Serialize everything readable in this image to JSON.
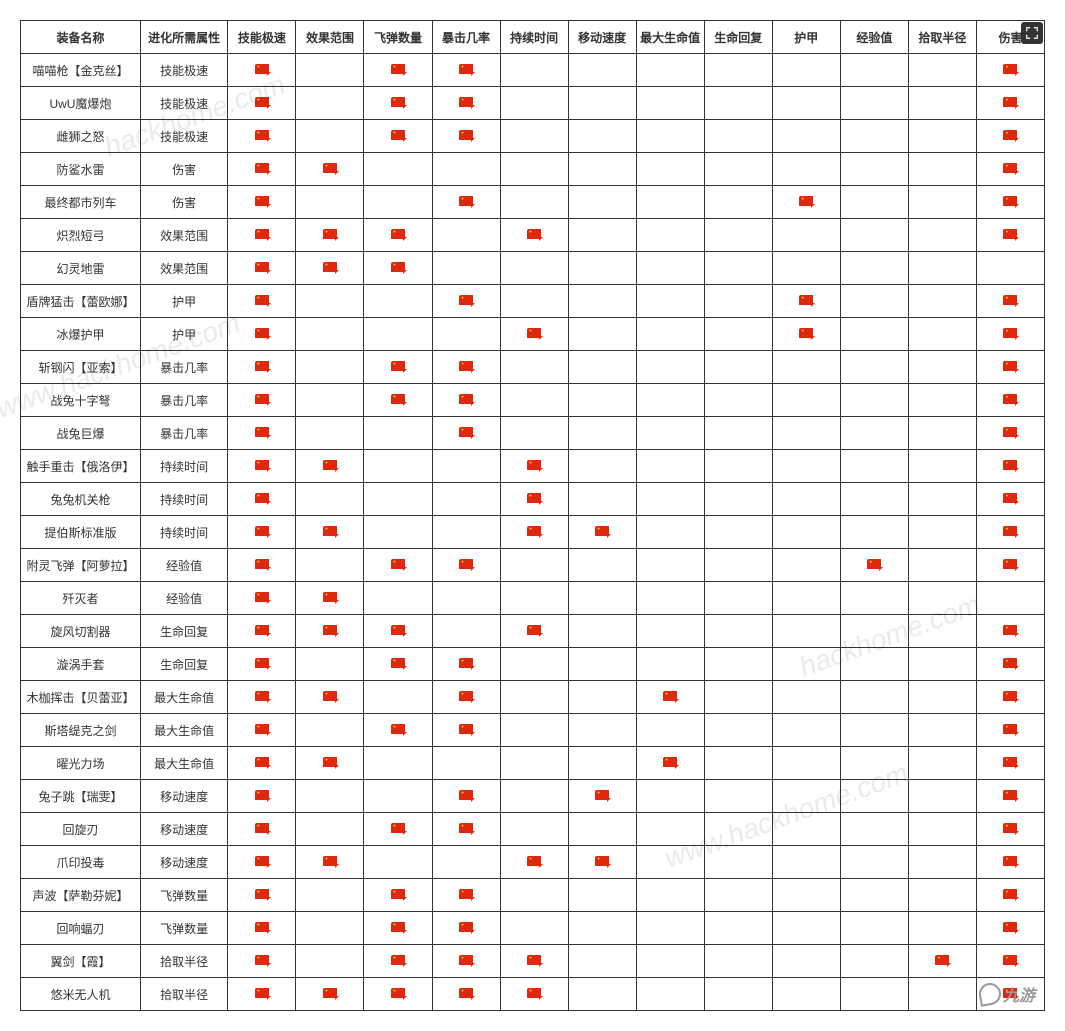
{
  "columns": [
    "装备名称",
    "进化所需属性",
    "技能极速",
    "效果范围",
    "飞弹数量",
    "暴击几率",
    "持续时间",
    "移动速度",
    "最大生命值",
    "生命回复",
    "护甲",
    "经验值",
    "拾取半径",
    "伤害"
  ],
  "rows": [
    {
      "name": "喵喵枪【金克丝】",
      "attr": "技能极速",
      "flags": [
        1,
        0,
        1,
        1,
        0,
        0,
        0,
        0,
        0,
        0,
        0,
        1
      ]
    },
    {
      "name": "UwU魔爆炮",
      "attr": "技能极速",
      "flags": [
        1,
        0,
        1,
        1,
        0,
        0,
        0,
        0,
        0,
        0,
        0,
        1
      ]
    },
    {
      "name": "雌狮之怒",
      "attr": "技能极速",
      "flags": [
        1,
        0,
        1,
        1,
        0,
        0,
        0,
        0,
        0,
        0,
        0,
        1
      ]
    },
    {
      "name": "防鲨水雷",
      "attr": "伤害",
      "flags": [
        1,
        1,
        0,
        0,
        0,
        0,
        0,
        0,
        0,
        0,
        0,
        1
      ]
    },
    {
      "name": "最终都市列车",
      "attr": "伤害",
      "flags": [
        1,
        0,
        0,
        1,
        0,
        0,
        0,
        0,
        1,
        0,
        0,
        1
      ]
    },
    {
      "name": "炽烈短弓",
      "attr": "效果范围",
      "flags": [
        1,
        1,
        1,
        0,
        1,
        0,
        0,
        0,
        0,
        0,
        0,
        1
      ]
    },
    {
      "name": "幻灵地雷",
      "attr": "效果范围",
      "flags": [
        1,
        1,
        1,
        0,
        0,
        0,
        0,
        0,
        0,
        0,
        0,
        0
      ]
    },
    {
      "name": "盾牌猛击【蕾欧娜】",
      "attr": "护甲",
      "flags": [
        1,
        0,
        0,
        1,
        0,
        0,
        0,
        0,
        1,
        0,
        0,
        1
      ]
    },
    {
      "name": "冰爆护甲",
      "attr": "护甲",
      "flags": [
        1,
        0,
        0,
        0,
        1,
        0,
        0,
        0,
        1,
        0,
        0,
        1
      ]
    },
    {
      "name": "斩钢闪【亚索】",
      "attr": "暴击几率",
      "flags": [
        1,
        0,
        1,
        1,
        0,
        0,
        0,
        0,
        0,
        0,
        0,
        1
      ]
    },
    {
      "name": "战兔十字弩",
      "attr": "暴击几率",
      "flags": [
        1,
        0,
        1,
        1,
        0,
        0,
        0,
        0,
        0,
        0,
        0,
        1
      ]
    },
    {
      "name": "战兔巨爆",
      "attr": "暴击几率",
      "flags": [
        1,
        0,
        0,
        1,
        0,
        0,
        0,
        0,
        0,
        0,
        0,
        1
      ]
    },
    {
      "name": "触手重击【俄洛伊】",
      "attr": "持续时间",
      "flags": [
        1,
        1,
        0,
        0,
        1,
        0,
        0,
        0,
        0,
        0,
        0,
        1
      ]
    },
    {
      "name": "兔兔机关枪",
      "attr": "持续时间",
      "flags": [
        1,
        0,
        0,
        0,
        1,
        0,
        0,
        0,
        0,
        0,
        0,
        1
      ]
    },
    {
      "name": "提伯斯标准版",
      "attr": "持续时间",
      "flags": [
        1,
        1,
        0,
        0,
        1,
        1,
        0,
        0,
        0,
        0,
        0,
        1
      ]
    },
    {
      "name": "附灵飞弹【阿萝拉】",
      "attr": "经验值",
      "flags": [
        1,
        0,
        1,
        1,
        0,
        0,
        0,
        0,
        0,
        1,
        0,
        1
      ]
    },
    {
      "name": "歼灭者",
      "attr": "经验值",
      "flags": [
        1,
        1,
        0,
        0,
        0,
        0,
        0,
        0,
        0,
        0,
        0,
        0
      ]
    },
    {
      "name": "旋风切割器",
      "attr": "生命回复",
      "flags": [
        1,
        1,
        1,
        0,
        1,
        0,
        0,
        0,
        0,
        0,
        0,
        1
      ]
    },
    {
      "name": "漩涡手套",
      "attr": "生命回复",
      "flags": [
        1,
        0,
        1,
        1,
        0,
        0,
        0,
        0,
        0,
        0,
        0,
        1
      ]
    },
    {
      "name": "木枷挥击【贝蕾亚】",
      "attr": "最大生命值",
      "flags": [
        1,
        1,
        0,
        1,
        0,
        0,
        1,
        0,
        0,
        0,
        0,
        1
      ]
    },
    {
      "name": "斯塔缇克之剑",
      "attr": "最大生命值",
      "flags": [
        1,
        0,
        1,
        1,
        0,
        0,
        0,
        0,
        0,
        0,
        0,
        1
      ]
    },
    {
      "name": "曜光力场",
      "attr": "最大生命值",
      "flags": [
        1,
        1,
        0,
        0,
        0,
        0,
        1,
        0,
        0,
        0,
        0,
        1
      ]
    },
    {
      "name": "兔子跳【瑞雯】",
      "attr": "移动速度",
      "flags": [
        1,
        0,
        0,
        1,
        0,
        1,
        0,
        0,
        0,
        0,
        0,
        1
      ]
    },
    {
      "name": "回旋刃",
      "attr": "移动速度",
      "flags": [
        1,
        0,
        1,
        1,
        0,
        0,
        0,
        0,
        0,
        0,
        0,
        1
      ]
    },
    {
      "name": "爪印投毒",
      "attr": "移动速度",
      "flags": [
        1,
        1,
        0,
        0,
        1,
        1,
        0,
        0,
        0,
        0,
        0,
        1
      ]
    },
    {
      "name": "声波【萨勒芬妮】",
      "attr": "飞弹数量",
      "flags": [
        1,
        0,
        1,
        1,
        0,
        0,
        0,
        0,
        0,
        0,
        0,
        1
      ]
    },
    {
      "name": "回响蝠刃",
      "attr": "飞弹数量",
      "flags": [
        1,
        0,
        1,
        1,
        0,
        0,
        0,
        0,
        0,
        0,
        0,
        1
      ]
    },
    {
      "name": "翼剑【霞】",
      "attr": "拾取半径",
      "flags": [
        1,
        0,
        1,
        1,
        1,
        0,
        0,
        0,
        0,
        0,
        1,
        1
      ]
    },
    {
      "name": "悠米无人机",
      "attr": "拾取半径",
      "flags": [
        1,
        1,
        1,
        1,
        1,
        0,
        0,
        0,
        0,
        0,
        0,
        1
      ]
    }
  ],
  "watermark1": "hackhome.com",
  "watermark2": "www.hackhome.com",
  "brand": "九游",
  "colors": {
    "border": "#333333",
    "text": "#333333",
    "flag_bg": "#de2910",
    "flag_star": "#ffde00",
    "wm": "#00000015",
    "expand_bg": "#000000cc",
    "expand_icon": "#ffffff"
  }
}
